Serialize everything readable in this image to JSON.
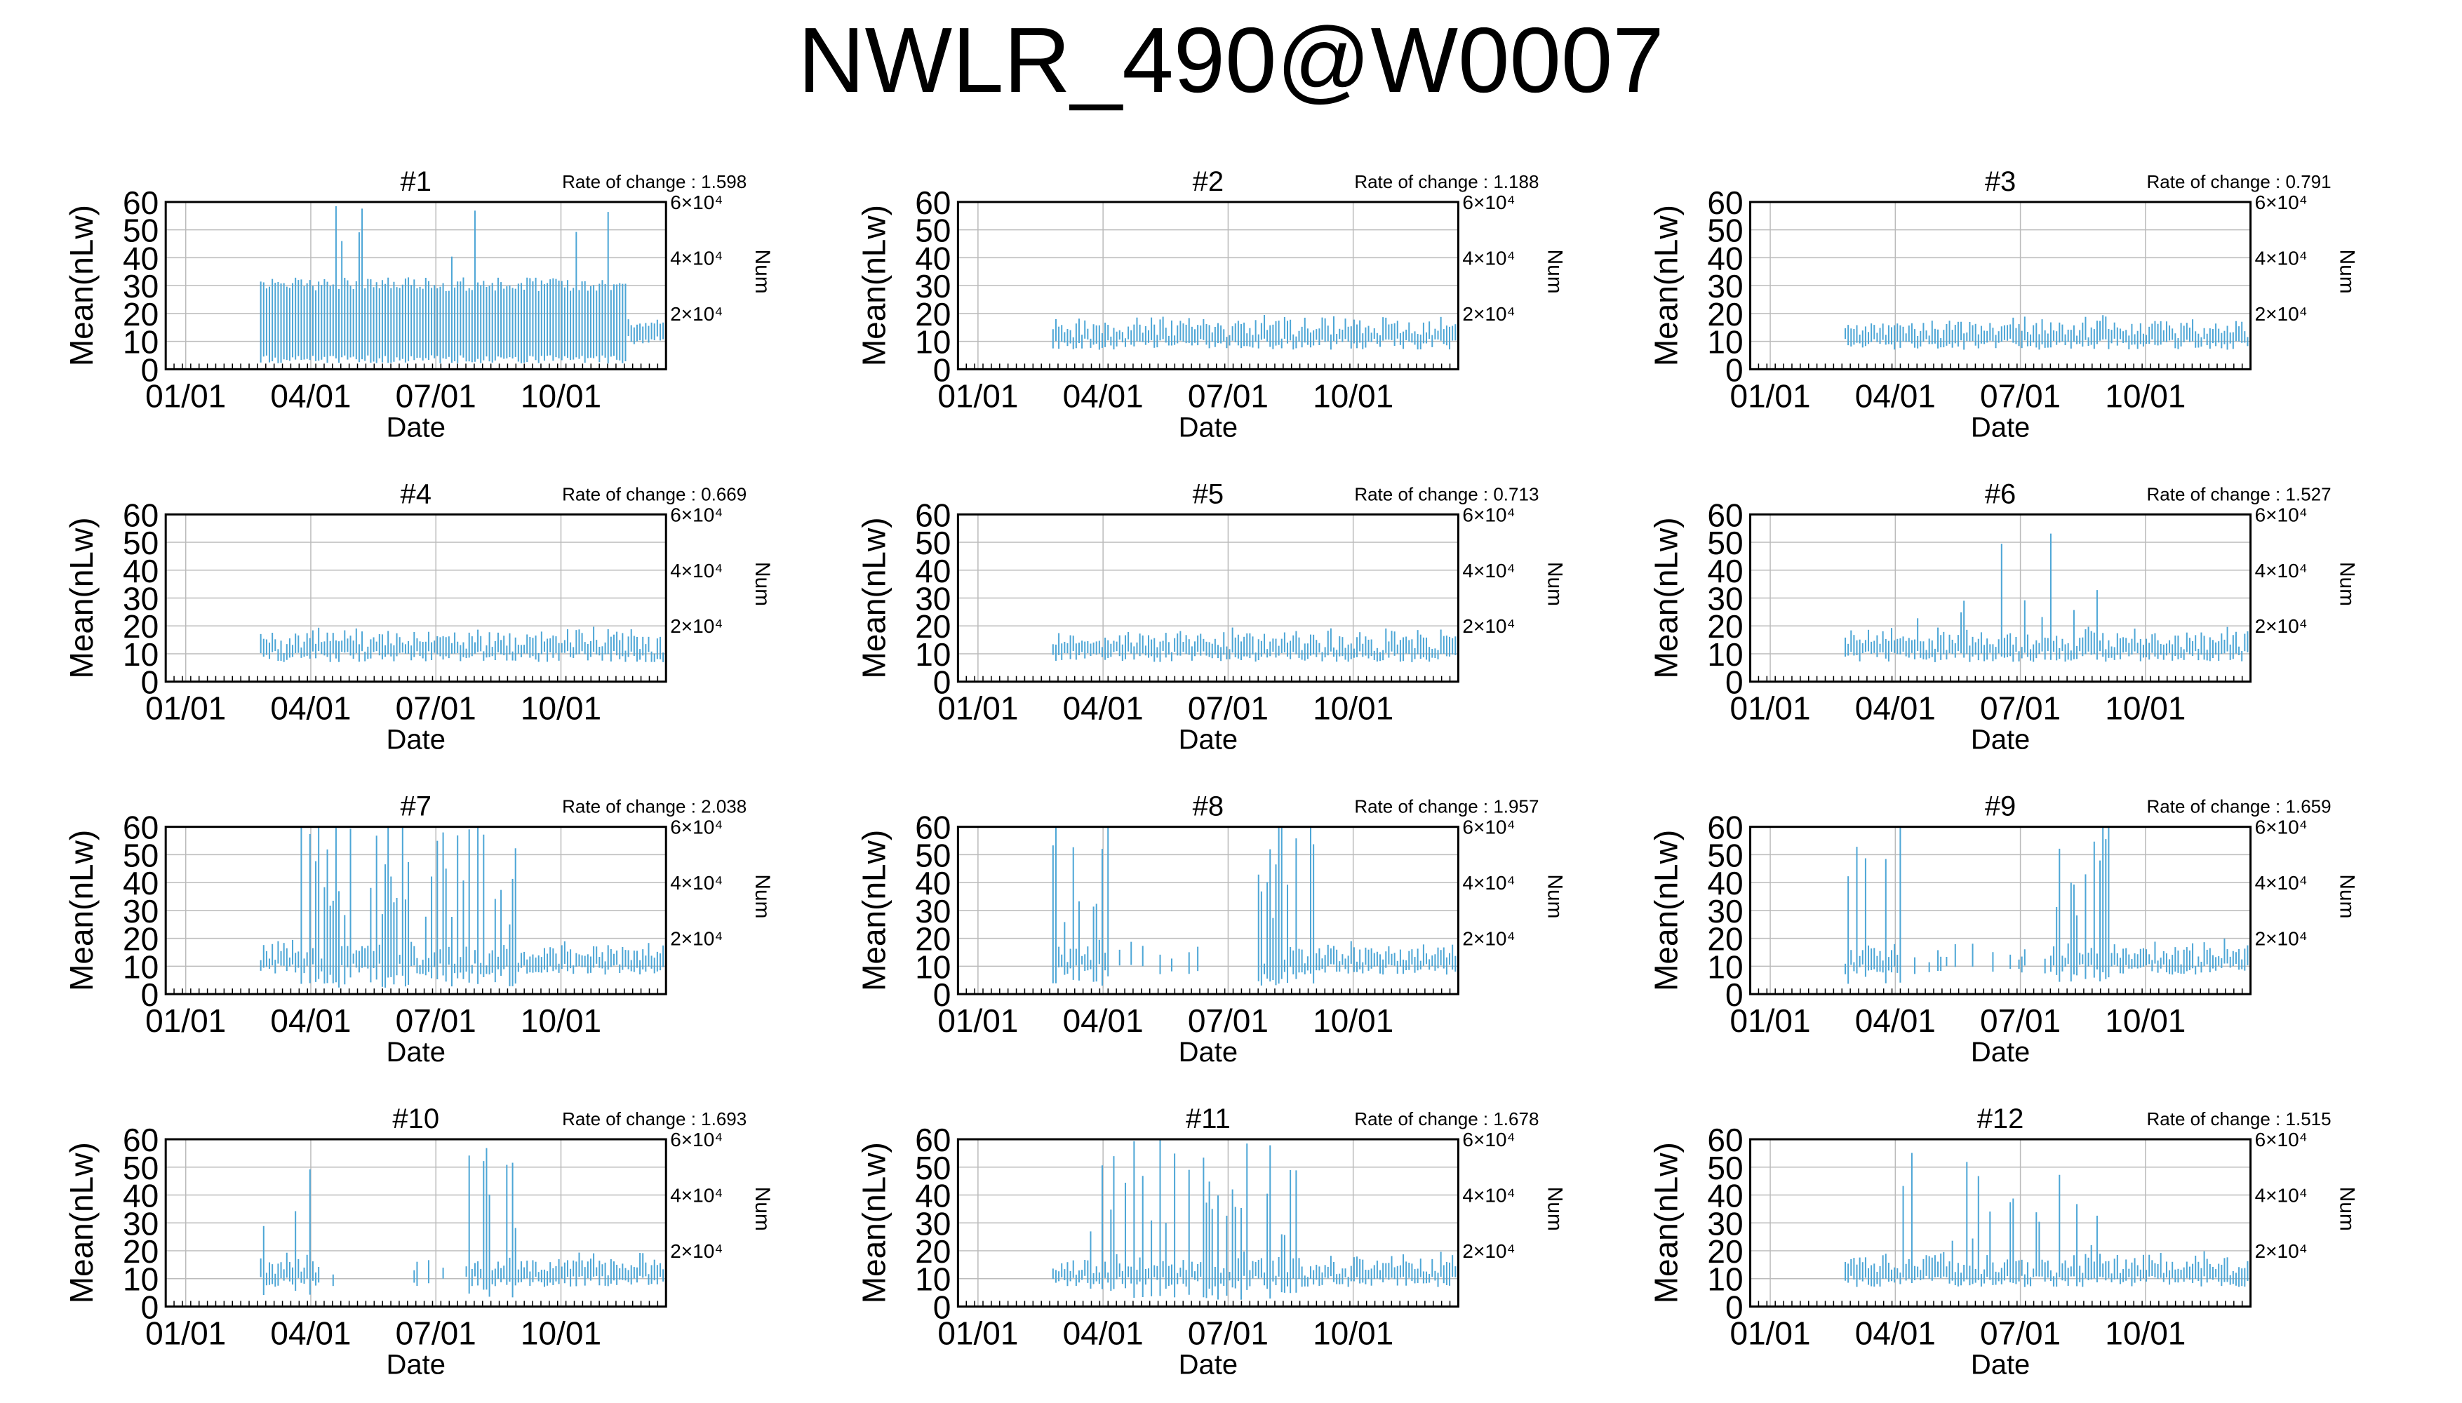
{
  "figure": {
    "title": "NWLR_490@W0007"
  },
  "chart_data": [
    {
      "type": "line",
      "title": "#1",
      "rate_label": "Rate of change : 1.598",
      "xlabel": "Date",
      "ylabel": "Mean(nLw)",
      "y2label": "Num",
      "x_ticks": [
        "01/01",
        "04/01",
        "07/01",
        "10/01"
      ],
      "y_ticks": [
        "60",
        "50",
        "40",
        "30",
        "20",
        "10",
        "0"
      ],
      "y2_ticks": [
        "6×10⁴",
        "4×10⁴",
        "2×10⁴"
      ],
      "ylim": [
        0,
        60
      ],
      "y2lim": [
        0,
        60000
      ],
      "grid": true,
      "series": [
        {
          "style": "error-bars",
          "profile": "tall-flat"
        }
      ]
    },
    {
      "type": "line",
      "title": "#2",
      "rate_label": "Rate of change : 1.188",
      "xlabel": "Date",
      "ylabel": "Mean(nLw)",
      "y2label": "Num",
      "x_ticks": [
        "01/01",
        "04/01",
        "07/01",
        "10/01"
      ],
      "y_ticks": [
        "60",
        "50",
        "40",
        "30",
        "20",
        "10",
        "0"
      ],
      "y2_ticks": [
        "6×10⁴",
        "4×10⁴",
        "2×10⁴"
      ],
      "ylim": [
        0,
        60
      ],
      "y2lim": [
        0,
        60000
      ],
      "grid": true,
      "series": [
        {
          "style": "error-bars",
          "profile": "low"
        }
      ]
    },
    {
      "type": "line",
      "title": "#3",
      "rate_label": "Rate of change : 0.791",
      "xlabel": "Date",
      "ylabel": "Mean(nLw)",
      "y2label": "Num",
      "x_ticks": [
        "01/01",
        "04/01",
        "07/01",
        "10/01"
      ],
      "y_ticks": [
        "60",
        "50",
        "40",
        "30",
        "20",
        "10",
        "0"
      ],
      "y2_ticks": [
        "6×10⁴",
        "4×10⁴",
        "2×10⁴"
      ],
      "ylim": [
        0,
        60
      ],
      "y2lim": [
        0,
        60000
      ],
      "grid": true,
      "series": [
        {
          "style": "error-bars",
          "profile": "low"
        }
      ]
    },
    {
      "type": "line",
      "title": "#4",
      "rate_label": "Rate of change : 0.669",
      "xlabel": "Date",
      "ylabel": "Mean(nLw)",
      "y2label": "Num",
      "x_ticks": [
        "01/01",
        "04/01",
        "07/01",
        "10/01"
      ],
      "y_ticks": [
        "60",
        "50",
        "40",
        "30",
        "20",
        "10",
        "0"
      ],
      "y2_ticks": [
        "6×10⁴",
        "4×10⁴",
        "2×10⁴"
      ],
      "ylim": [
        0,
        60
      ],
      "y2lim": [
        0,
        60000
      ],
      "grid": true,
      "series": [
        {
          "style": "error-bars",
          "profile": "low"
        }
      ]
    },
    {
      "type": "line",
      "title": "#5",
      "rate_label": "Rate of change : 0.713",
      "xlabel": "Date",
      "ylabel": "Mean(nLw)",
      "y2label": "Num",
      "x_ticks": [
        "01/01",
        "04/01",
        "07/01",
        "10/01"
      ],
      "y_ticks": [
        "60",
        "50",
        "40",
        "30",
        "20",
        "10",
        "0"
      ],
      "y2_ticks": [
        "6×10⁴",
        "4×10⁴",
        "2×10⁴"
      ],
      "ylim": [
        0,
        60
      ],
      "y2lim": [
        0,
        60000
      ],
      "grid": true,
      "series": [
        {
          "style": "error-bars",
          "profile": "low"
        }
      ]
    },
    {
      "type": "line",
      "title": "#6",
      "rate_label": "Rate of change : 1.527",
      "xlabel": "Date",
      "ylabel": "Mean(nLw)",
      "y2label": "Num",
      "x_ticks": [
        "01/01",
        "04/01",
        "07/01",
        "10/01"
      ],
      "y_ticks": [
        "60",
        "50",
        "40",
        "30",
        "20",
        "10",
        "0"
      ],
      "y2_ticks": [
        "6×10⁴",
        "4×10⁴",
        "2×10⁴"
      ],
      "ylim": [
        0,
        60
      ],
      "y2lim": [
        0,
        60000
      ],
      "grid": true,
      "series": [
        {
          "style": "error-bars",
          "profile": "spiky-summer"
        }
      ]
    },
    {
      "type": "line",
      "title": "#7",
      "rate_label": "Rate of change : 2.038",
      "xlabel": "Date",
      "ylabel": "Mean(nLw)",
      "y2label": "Num",
      "x_ticks": [
        "01/01",
        "04/01",
        "07/01",
        "10/01"
      ],
      "y_ticks": [
        "60",
        "50",
        "40",
        "30",
        "20",
        "10",
        "0"
      ],
      "y2_ticks": [
        "6×10⁴",
        "4×10⁴",
        "2×10⁴"
      ],
      "ylim": [
        0,
        60
      ],
      "y2lim": [
        0,
        60000
      ],
      "grid": true,
      "series": [
        {
          "style": "error-bars",
          "profile": "very-spiky"
        }
      ]
    },
    {
      "type": "line",
      "title": "#8",
      "rate_label": "Rate of change : 1.957",
      "xlabel": "Date",
      "ylabel": "Mean(nLw)",
      "y2label": "Num",
      "x_ticks": [
        "01/01",
        "04/01",
        "07/01",
        "10/01"
      ],
      "y_ticks": [
        "60",
        "50",
        "40",
        "30",
        "20",
        "10",
        "0"
      ],
      "y2_ticks": [
        "6×10⁴",
        "4×10⁴",
        "2×10⁴"
      ],
      "ylim": [
        0,
        60
      ],
      "y2lim": [
        0,
        60000
      ],
      "grid": true,
      "series": [
        {
          "style": "error-bars",
          "profile": "gappy"
        }
      ]
    },
    {
      "type": "line",
      "title": "#9",
      "rate_label": "Rate of change : 1.659",
      "xlabel": "Date",
      "ylabel": "Mean(nLw)",
      "y2label": "Num",
      "x_ticks": [
        "01/01",
        "04/01",
        "07/01",
        "10/01"
      ],
      "y_ticks": [
        "60",
        "50",
        "40",
        "30",
        "20",
        "10",
        "0"
      ],
      "y2_ticks": [
        "6×10⁴",
        "4×10⁴",
        "2×10⁴"
      ],
      "ylim": [
        0,
        60
      ],
      "y2lim": [
        0,
        60000
      ],
      "grid": true,
      "series": [
        {
          "style": "error-bars",
          "profile": "gappy"
        }
      ]
    },
    {
      "type": "line",
      "title": "#10",
      "rate_label": "Rate of change : 1.693",
      "xlabel": "Date",
      "ylabel": "Mean(nLw)",
      "y2label": "Num",
      "x_ticks": [
        "01/01",
        "04/01",
        "07/01",
        "10/01"
      ],
      "y_ticks": [
        "60",
        "50",
        "40",
        "30",
        "20",
        "10",
        "0"
      ],
      "y2_ticks": [
        "6×10⁴",
        "4×10⁴",
        "2×10⁴"
      ],
      "ylim": [
        0,
        60
      ],
      "y2lim": [
        0,
        60000
      ],
      "grid": true,
      "series": [
        {
          "style": "error-bars",
          "profile": "gappy"
        }
      ]
    },
    {
      "type": "line",
      "title": "#11",
      "rate_label": "Rate of change : 1.678",
      "xlabel": "Date",
      "ylabel": "Mean(nLw)",
      "y2label": "Num",
      "x_ticks": [
        "01/01",
        "04/01",
        "07/01",
        "10/01"
      ],
      "y_ticks": [
        "60",
        "50",
        "40",
        "30",
        "20",
        "10",
        "0"
      ],
      "y2_ticks": [
        "6×10⁴",
        "4×10⁴",
        "2×10⁴"
      ],
      "ylim": [
        0,
        60
      ],
      "y2lim": [
        0,
        60000
      ],
      "grid": true,
      "series": [
        {
          "style": "error-bars",
          "profile": "very-spiky"
        }
      ]
    },
    {
      "type": "line",
      "title": "#12",
      "rate_label": "Rate of change : 1.515",
      "xlabel": "Date",
      "ylabel": "Mean(nLw)",
      "y2label": "Num",
      "x_ticks": [
        "01/01",
        "04/01",
        "07/01",
        "10/01"
      ],
      "y_ticks": [
        "60",
        "50",
        "40",
        "30",
        "20",
        "10",
        "0"
      ],
      "y2_ticks": [
        "6×10⁴",
        "4×10⁴",
        "2×10⁴"
      ],
      "ylim": [
        0,
        60
      ],
      "y2lim": [
        0,
        60000
      ],
      "grid": true,
      "series": [
        {
          "style": "error-bars",
          "profile": "spiky-summer"
        }
      ]
    }
  ]
}
